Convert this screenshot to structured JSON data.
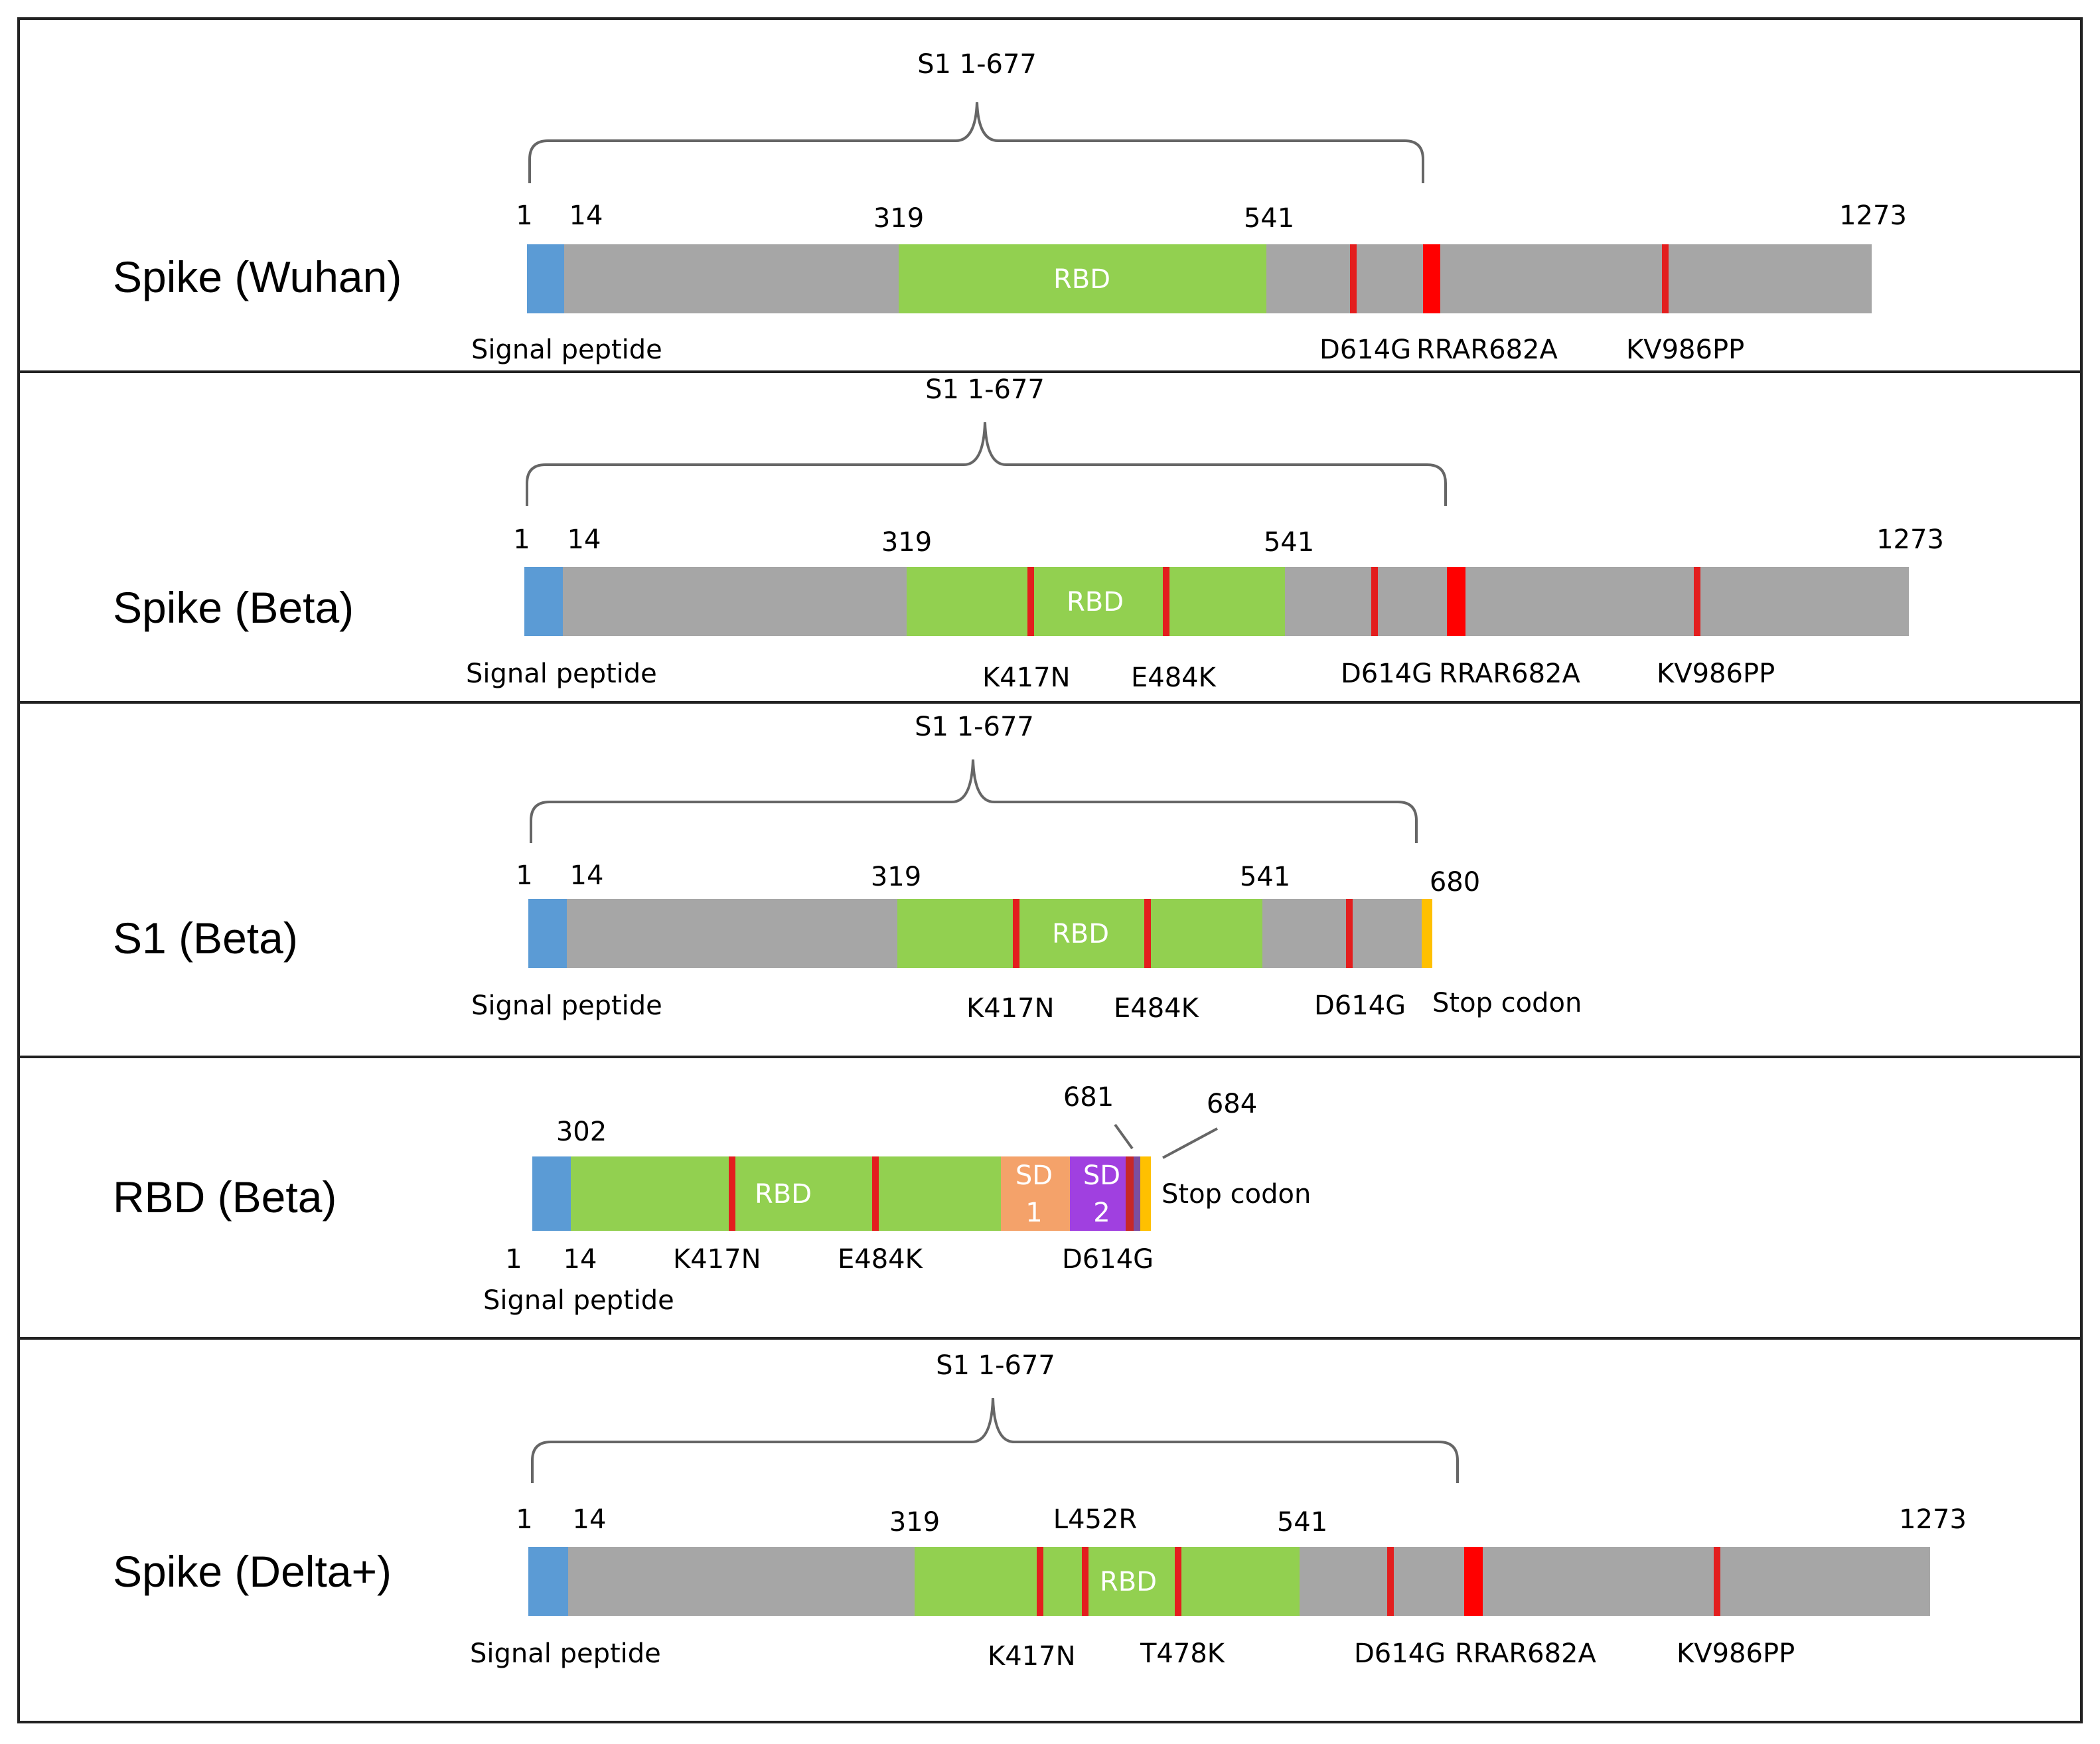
{
  "colors": {
    "bar": "#a6a6a6",
    "signal_peptide": "#5b9bd5",
    "rbd": "#92d050",
    "mutation": "#e31e1e",
    "furin_site": "#ff0000",
    "stop_codon": "#ffc000",
    "sd1": "#f4a26a",
    "sd2": "#a040e0"
  },
  "panels": {
    "wuhan": {
      "title": "Spike (Wuhan)",
      "s1_label": "S1 1-677",
      "pos_1": "1",
      "pos_14": "14",
      "pos_319": "319",
      "pos_541": "541",
      "pos_end": "1273",
      "rbd_label": "RBD",
      "signal_peptide": "Signal peptide",
      "d614g": "D614G",
      "rrar": "RRAR682A",
      "kv986pp": "KV986PP"
    },
    "beta": {
      "title": "Spike (Beta)",
      "s1_label": "S1 1-677",
      "pos_1": "1",
      "pos_14": "14",
      "pos_319": "319",
      "pos_541": "541",
      "pos_end": "1273",
      "rbd_label": "RBD",
      "signal_peptide": "Signal peptide",
      "k417n": "K417N",
      "e484k": "E484K",
      "d614g": "D614G",
      "rrar": "RRAR682A",
      "kv986pp": "KV986PP"
    },
    "s1beta": {
      "title": "S1 (Beta)",
      "s1_label": "S1 1-677",
      "pos_1": "1",
      "pos_14": "14",
      "pos_319": "319",
      "pos_541": "541",
      "pos_end": "680",
      "rbd_label": "RBD",
      "signal_peptide": "Signal peptide",
      "k417n": "K417N",
      "e484k": "E484K",
      "d614g": "D614G",
      "stop": "Stop codon"
    },
    "rbdbeta": {
      "title": "RBD (Beta)",
      "pos_302": "302",
      "pos_681": "681",
      "pos_684": "684",
      "rbd_label": "RBD",
      "sd1_line1": "SD",
      "sd1_line2": "1",
      "sd2_line1": "SD",
      "sd2_line2": "2",
      "stop": "Stop codon",
      "pos_1": "1",
      "pos_14": "14",
      "k417n": "K417N",
      "e484k": "E484K",
      "d614g": "D614G",
      "signal_peptide": "Signal peptide"
    },
    "delta": {
      "title": "Spike (Delta+)",
      "s1_label": "S1 1-677",
      "pos_1": "1",
      "pos_14": "14",
      "pos_319": "319",
      "pos_541": "541",
      "pos_end": "1273",
      "l452r": "L452R",
      "rbd_label": "RBD",
      "signal_peptide": "Signal peptide",
      "k417n": "K417N",
      "t478k": "T478K",
      "d614g": "D614G",
      "rrar": "RRAR682A",
      "kv986pp": "KV986PP"
    }
  }
}
